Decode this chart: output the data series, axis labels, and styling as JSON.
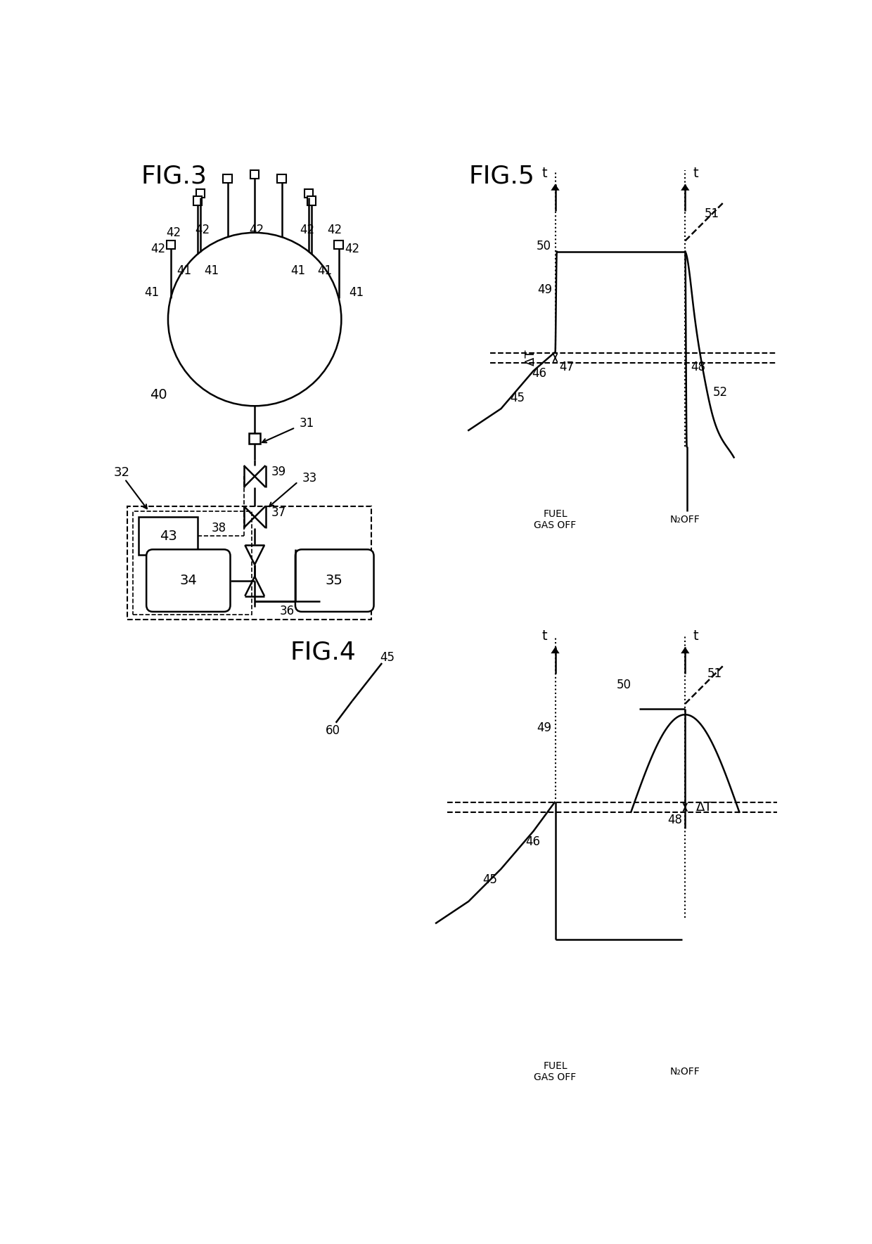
{
  "bg_color": "#ffffff",
  "line_color": "#000000",
  "fig3_label": "FIG.3",
  "fig4_label": "FIG.4",
  "fig5_label": "FIG.5",
  "lw": 1.8,
  "lw_thin": 1.2
}
